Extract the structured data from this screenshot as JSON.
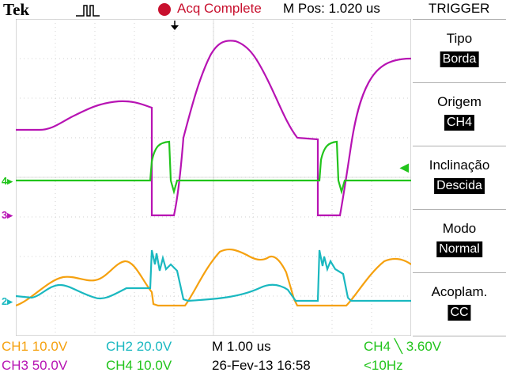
{
  "header": {
    "brand": "Tek",
    "acquisition_status": "Acq Complete",
    "m_pos": "M Pos: 1.020 us",
    "trigger_title": "TRIGGER"
  },
  "trigger_menu": [
    {
      "label": "Tipo",
      "value": "Borda"
    },
    {
      "label": "Origem",
      "value": "CH4"
    },
    {
      "label": "Inclinação",
      "value": "Descida"
    },
    {
      "label": "Modo",
      "value": "Normal"
    },
    {
      "label": "Acoplam.",
      "value": "CC"
    }
  ],
  "footer": {
    "ch1": "CH1  10.0V",
    "ch2": "CH2  20.0V",
    "ch3": "CH3  50.0V",
    "ch4": "CH4  10.0V",
    "timebase": "M 1.00 us",
    "datetime": "26-Fev-13 16:58",
    "trigger": "CH4 ╲ 3.60V",
    "frequency": "<10Hz"
  },
  "markers": {
    "ch4": "4",
    "ch3": "3",
    "ch2": "2"
  },
  "colors": {
    "ch1": "#f5a10f",
    "ch2": "#1ab8c0",
    "ch3": "#b713b3",
    "ch4": "#22c41c",
    "status": "#c8102e"
  }
}
